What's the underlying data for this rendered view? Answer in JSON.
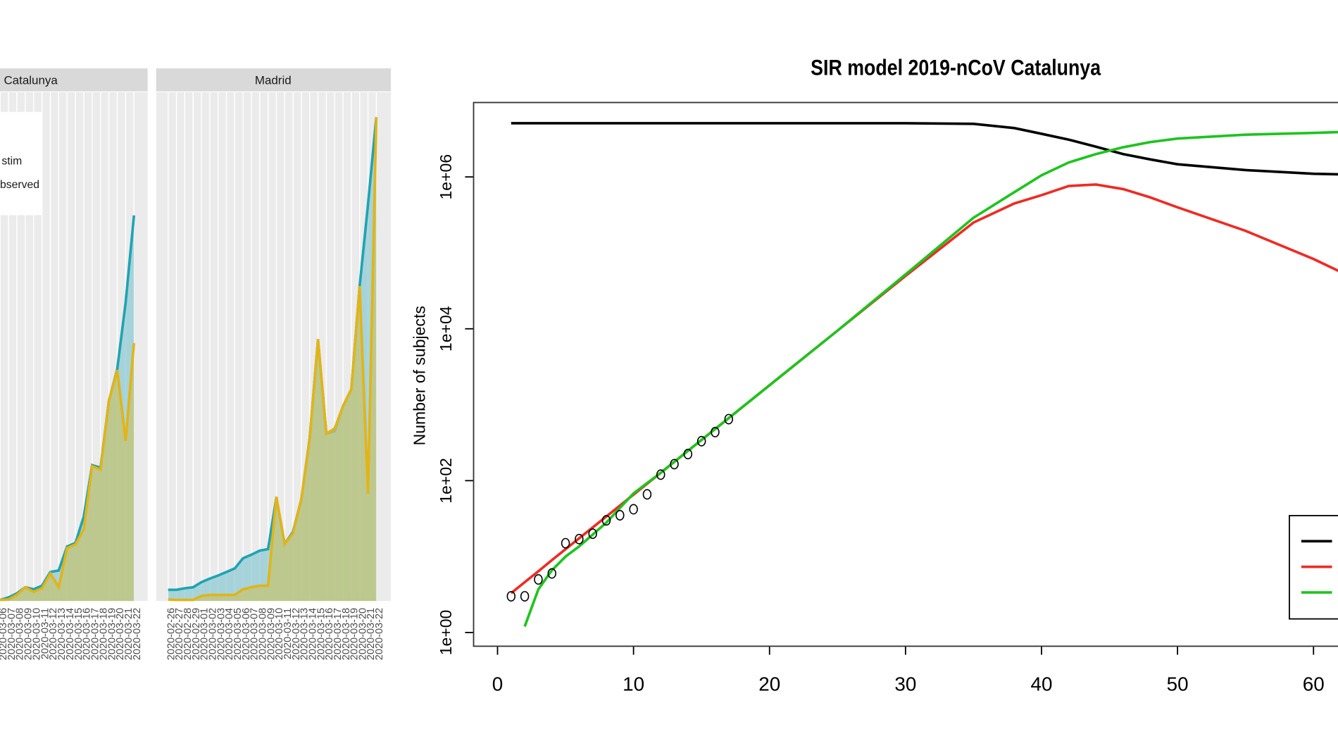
{
  "chart_data": [
    {
      "type": "area",
      "title": "Catalunya",
      "categories": [
        "2020-03-06",
        "2020-03-07",
        "2020-03-08",
        "2020-03-09",
        "2020-03-10",
        "2020-03-11",
        "2020-03-12",
        "2020-03-13",
        "2020-03-14",
        "2020-03-15",
        "2020-03-16",
        "2020-03-17",
        "2020-03-18",
        "2020-03-19",
        "2020-03-20",
        "2020-03-21",
        "2020-03-22"
      ],
      "ylim": [
        0,
        100
      ],
      "series": [
        {
          "name": "stim",
          "color": "#1fa3b3",
          "fill": "#8fcbd3",
          "values": [
            0.2,
            0.7,
            1.5,
            2.7,
            2.3,
            3.0,
            5.7,
            6.0,
            10.7,
            11.4,
            16.6,
            26.7,
            26.2,
            39.3,
            45.6,
            58.6,
            75.8
          ]
        },
        {
          "name": "bserved",
          "color": "#e2b417",
          "fill": "#c4c476",
          "values": [
            0.2,
            0.3,
            1.2,
            2.7,
            1.8,
            2.5,
            5.4,
            2.7,
            10.4,
            11.1,
            14.1,
            26.5,
            25.8,
            39.3,
            45.4,
            31.5,
            50.7
          ]
        }
      ]
    },
    {
      "type": "area",
      "title": "Madrid",
      "categories": [
        "2020-02-26",
        "2020-02-27",
        "2020-02-28",
        "2020-02-29",
        "2020-03-01",
        "2020-03-02",
        "2020-03-03",
        "2020-03-04",
        "2020-03-05",
        "2020-03-06",
        "2020-03-07",
        "2020-03-08",
        "2020-03-09",
        "2020-03-10",
        "2020-03-11",
        "2020-03-12",
        "2020-03-13",
        "2020-03-14",
        "2020-03-15",
        "2020-03-16",
        "2020-03-17",
        "2020-03-18",
        "2020-03-19",
        "2020-03-20",
        "2020-03-21",
        "2020-03-22"
      ],
      "ylim": [
        0,
        100
      ],
      "series": [
        {
          "color": "#1fa3b3",
          "fill": "#8fcbd3",
          "values": [
            2.2,
            2.2,
            2.5,
            2.7,
            3.7,
            4.4,
            5.0,
            5.7,
            6.4,
            8.4,
            9.1,
            9.9,
            10.2,
            20.3,
            11.2,
            13.6,
            20.0,
            32.0,
            51.3,
            32.9,
            33.4,
            38.3,
            41.6,
            61.9,
            77.9,
            95.1
          ]
        },
        {
          "color": "#e2b417",
          "fill": "#c4c476",
          "values": [
            0.3,
            0.2,
            0.2,
            0.2,
            1.0,
            1.2,
            1.2,
            1.2,
            1.2,
            2.3,
            2.7,
            3.0,
            3.0,
            20.5,
            11.2,
            13.3,
            20.1,
            31.9,
            51.5,
            32.9,
            33.9,
            38.3,
            41.6,
            61.9,
            21.1,
            95.1
          ]
        }
      ]
    },
    {
      "type": "line",
      "title": "SIR model 2019-nCoV  Catalunya",
      "y_label": "Number of subjects",
      "log_y": true,
      "xlim": [
        -1.76,
        61.8
      ],
      "xticks": [
        0,
        10,
        20,
        30,
        40,
        50,
        60
      ],
      "ylim": [
        0.66,
        9550000
      ],
      "yticks": [
        {
          "value": 1,
          "label": "1e+00"
        },
        {
          "value": 100,
          "label": "1e+02"
        },
        {
          "value": 10000,
          "label": "1e+04"
        },
        {
          "value": 1000000,
          "label": "1e+06"
        }
      ],
      "x": [
        1,
        2,
        3,
        4,
        5,
        6,
        8,
        10,
        12,
        15,
        17,
        20,
        25,
        30,
        35,
        38,
        40,
        42,
        44,
        46,
        48,
        50,
        55,
        60,
        62
      ],
      "series": [
        {
          "color": "#000000",
          "values": [
            5100000,
            5100000,
            5100000,
            5100000,
            5100000,
            5100000,
            5100000,
            5100000,
            5100000,
            5100000,
            5100000,
            5100000,
            5100000,
            5100000,
            5000000,
            4400000,
            3700000,
            3100000,
            2500000,
            2000000,
            1700000,
            1470000,
            1230000,
            1100000,
            1080000
          ]
        },
        {
          "color": "#ee2b24",
          "values": [
            3.3,
            4.6,
            6.4,
            9.0,
            12.5,
            17.4,
            33.7,
            65.5,
            127,
            344,
            667,
            1803,
            9462,
            49660,
            251000,
            447000,
            575000,
            759000,
            794000,
            692000,
            537000,
            398000,
            195000,
            83000,
            56000
          ]
        },
        {
          "color": "#1dc41d",
          "values": [
            null,
            1.2,
            3.7,
            6.6,
            10,
            13.6,
            28,
            68,
            127,
            344,
            667,
            1803,
            9462,
            52000,
            290000,
            630000,
            1050000,
            1550000,
            2000000,
            2460000,
            2880000,
            3200000,
            3600000,
            3800000,
            3900000
          ]
        },
        {
          "color": "#000000",
          "marker": "circle",
          "x": [
            1,
            2,
            3,
            4,
            5,
            6,
            7,
            8,
            9,
            10,
            11,
            12,
            13,
            14,
            15,
            16,
            17
          ],
          "values": [
            3,
            3,
            5,
            6,
            15,
            17,
            20,
            30,
            35,
            42,
            66,
            120,
            165,
            224,
            331,
            436,
            646
          ]
        }
      ]
    }
  ]
}
